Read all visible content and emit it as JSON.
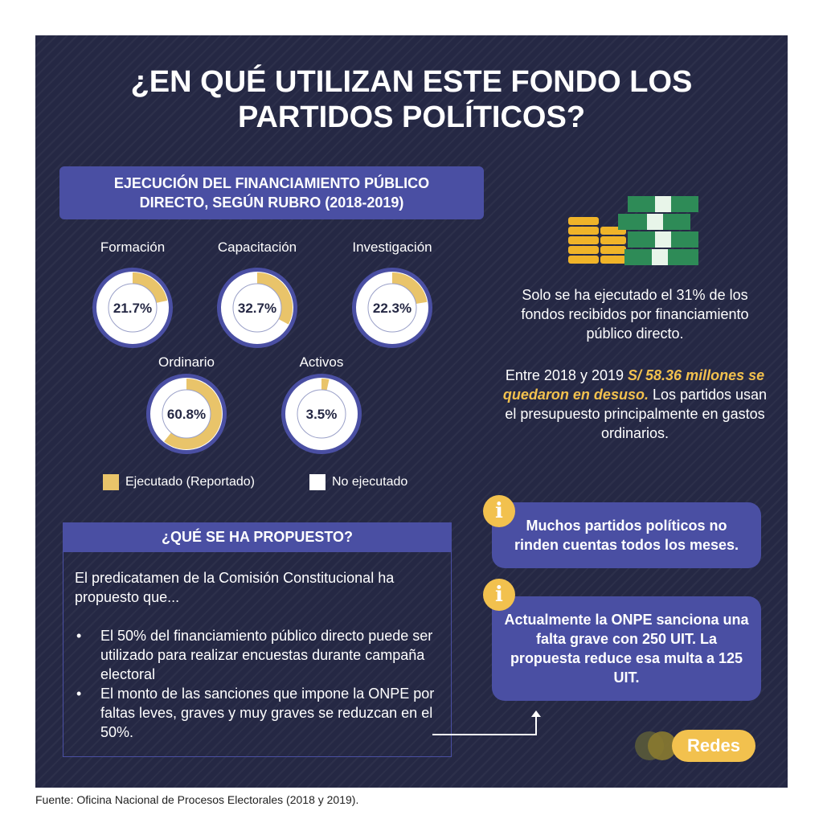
{
  "title": {
    "line1": "¿EN QUÉ UTILIZAN ESTE FONDO LOS",
    "line2": "PARTIDOS POLÍTICOS?"
  },
  "section": {
    "line1": "EJECUCIÓN DEL FINANCIAMIENTO PÚBLICO",
    "line2": "DIRECTO, SEGÚN RUBRO (2018-2019)"
  },
  "chart_data": {
    "type": "pie",
    "title": "EJECUCIÓN DEL FINANCIAMIENTO PÚBLICO DIRECTO, SEGÚN RUBRO (2018-2019)",
    "categories": [
      "Formación",
      "Capacitación",
      "Investigación",
      "Ordinario",
      "Activos"
    ],
    "series": [
      {
        "name": "Ejecutado (Reportado)",
        "values": [
          21.7,
          32.7,
          22.3,
          60.8,
          3.5
        ]
      },
      {
        "name": "No ejecutado",
        "values": [
          78.3,
          67.3,
          77.7,
          39.2,
          96.5
        ]
      }
    ],
    "value_labels": [
      "21.7%",
      "32.7%",
      "22.3%",
      "60.8%",
      "3.5%"
    ],
    "legend": [
      "Ejecutado (Reportado)",
      "No ejecutado"
    ],
    "legend_position": "bottom",
    "colors": {
      "executed": "#e9c46a",
      "not_executed": "#ffffff",
      "ring": "#4a4fa3",
      "text": "#252844"
    }
  },
  "right": {
    "para1": "Solo se ha ejecutado el 31% de los fondos recibidos por financiamiento público directo.",
    "para2_pre": "Entre 2018 y 2019",
    "para2_hl": "S/ 58.36 millones se quedaron en desuso.",
    "para2_post": "Los partidos usan el presupuesto principalmente en gastos ordinarios."
  },
  "proposal": {
    "header": "¿QUÉ SE HA PROPUESTO?",
    "intro": "El predicatamen de la Comisión Constitucional ha propuesto que...",
    "items": [
      "El 50% del financiamiento público directo puede ser utilizado para realizar encuestas durante campaña electoral",
      "El monto de las sanciones que impone la ONPE por faltas leves, graves y muy graves se reduzcan en el 50%."
    ]
  },
  "info": {
    "icon": "info-icon",
    "box1": "Muchos partidos políticos no rinden cuentas todos los meses.",
    "box2": "Actualmente la ONPE sanciona una falta grave con 250 UIT. La propuesta reduce esa multa a 125 UIT."
  },
  "brand": "Redes",
  "source": "Fuente: Oficina Nacional de Procesos Electorales (2018 y 2019).",
  "colors": {
    "background": "#252844",
    "accent": "#4a4fa3",
    "highlight": "#f2c14e"
  }
}
